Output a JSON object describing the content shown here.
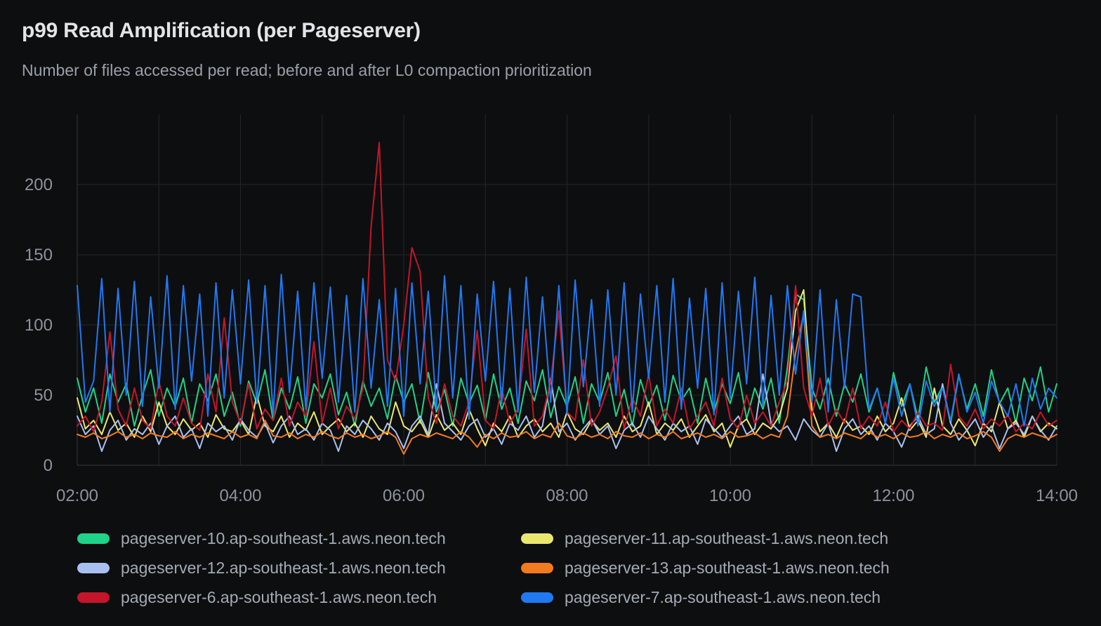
{
  "header": {
    "title": "p99 Read Amplification (per Pageserver)",
    "subtitle": "Number of files accessed per read; before and after L0 compaction prioritization"
  },
  "colors": {
    "background": "#0d0e10",
    "grid": "#232629",
    "axis": "#34383c",
    "tick_label": "#8e939a",
    "title_text": "#e2e4e7",
    "subtitle_text": "#9aa0a7",
    "legend_text": "#a4abb3"
  },
  "chart_data": {
    "type": "line",
    "title": "p99 Read Amplification (per Pageserver)",
    "xlabel": "",
    "ylabel": "",
    "x_range": [
      "02:00",
      "14:00"
    ],
    "x_tick_labels": [
      "02:00",
      "04:00",
      "06:00",
      "08:00",
      "10:00",
      "12:00",
      "14:00"
    ],
    "x_gridline_interval_hours": 1,
    "ylim": [
      0,
      250
    ],
    "y_ticks": [
      0,
      50,
      100,
      150,
      200
    ],
    "grid": true,
    "legend_position": "bottom",
    "sample_interval_minutes": 6,
    "series": [
      {
        "name": "pageserver-10.ap-southeast-1.aws.neon.tech",
        "color": "#1fd389",
        "values": [
          62,
          38,
          55,
          30,
          65,
          45,
          58,
          28,
          50,
          68,
          35,
          55,
          42,
          62,
          30,
          58,
          46,
          65,
          35,
          52,
          28,
          60,
          44,
          68,
          32,
          55,
          40,
          63,
          30,
          58,
          48,
          65,
          36,
          52,
          28,
          60,
          42,
          55,
          33,
          64,
          45,
          58,
          30,
          66,
          38,
          54,
          28,
          62,
          44,
          57,
          32,
          65,
          40,
          55,
          30,
          60,
          46,
          68,
          34,
          56,
          42,
          63,
          30,
          58,
          45,
          66,
          35,
          54,
          28,
          61,
          42,
          57,
          32,
          64,
          46,
          55,
          30,
          62,
          38,
          58,
          44,
          66,
          33,
          55,
          40,
          62,
          30,
          70,
          122,
          118,
          55,
          40,
          62,
          35,
          58,
          45,
          65,
          38,
          55,
          30,
          66,
          42,
          58,
          33,
          70,
          45,
          56,
          30,
          64,
          40,
          58,
          35,
          68,
          44,
          55,
          30,
          62,
          46,
          70,
          38,
          58
        ]
      },
      {
        "name": "pageserver-11.ap-southeast-1.aws.neon.tech",
        "color": "#ebe76e",
        "values": [
          48,
          26,
          32,
          22,
          38,
          25,
          30,
          20,
          35,
          24,
          45,
          28,
          22,
          33,
          25,
          30,
          20,
          36,
          26,
          24,
          32,
          22,
          50,
          28,
          24,
          35,
          20,
          30,
          25,
          38,
          22,
          28,
          33,
          24,
          30,
          20,
          35,
          26,
          22,
          45,
          28,
          24,
          32,
          20,
          36,
          25,
          30,
          22,
          40,
          26,
          14,
          30,
          24,
          35,
          20,
          28,
          33,
          24,
          30,
          20,
          38,
          26,
          22,
          32,
          25,
          30,
          20,
          35,
          24,
          28,
          45,
          22,
          30,
          25,
          33,
          20,
          28,
          36,
          24,
          30,
          13,
          28,
          33,
          22,
          30,
          26,
          35,
          55,
          110,
          125,
          40,
          24,
          30,
          20,
          33,
          25,
          28,
          22,
          35,
          24,
          30,
          48,
          25,
          32,
          20,
          55,
          28,
          22,
          33,
          25,
          14,
          30,
          24,
          45,
          26,
          32,
          20,
          35,
          24,
          30,
          26
        ]
      },
      {
        "name": "pageserver-12.ap-southeast-1.aws.neon.tech",
        "color": "#a8c0f0",
        "values": [
          35,
          22,
          28,
          10,
          25,
          32,
          18,
          26,
          22,
          30,
          15,
          28,
          35,
          20,
          26,
          12,
          30,
          24,
          28,
          18,
          33,
          25,
          20,
          30,
          16,
          28,
          35,
          22,
          26,
          18,
          30,
          25,
          10,
          28,
          22,
          32,
          26,
          18,
          30,
          24,
          12,
          28,
          35,
          22,
          58,
          30,
          24,
          18,
          28,
          33,
          20,
          26,
          15,
          30,
          25,
          35,
          20,
          28,
          62,
          24,
          30,
          18,
          26,
          33,
          22,
          28,
          12,
          25,
          30,
          20,
          35,
          26,
          18,
          30,
          24,
          28,
          15,
          33,
          26,
          20,
          28,
          35,
          22,
          26,
          65,
          30,
          24,
          28,
          18,
          33,
          25,
          20,
          30,
          10,
          26,
          33,
          22,
          28,
          18,
          30,
          24,
          13,
          28,
          35,
          22,
          26,
          58,
          30,
          18,
          25,
          33,
          20,
          28,
          12,
          26,
          30,
          22,
          35,
          25,
          18,
          28
        ]
      },
      {
        "name": "pageserver-13.ap-southeast-1.aws.neon.tech",
        "color": "#f27a1f",
        "values": [
          22,
          20,
          23,
          19,
          21,
          24,
          20,
          22,
          19,
          23,
          21,
          20,
          24,
          19,
          22,
          20,
          23,
          21,
          19,
          24,
          20,
          22,
          19,
          32,
          21,
          20,
          23,
          19,
          22,
          20,
          24,
          21,
          19,
          23,
          20,
          22,
          19,
          21,
          24,
          20,
          8,
          19,
          22,
          20,
          23,
          21,
          19,
          24,
          20,
          13,
          22,
          19,
          23,
          20,
          21,
          24,
          19,
          22,
          20,
          30,
          21,
          19,
          23,
          20,
          22,
          19,
          24,
          21,
          20,
          23,
          19,
          22,
          20,
          24,
          19,
          21,
          23,
          20,
          22,
          19,
          24,
          20,
          21,
          23,
          19,
          22,
          20,
          35,
          80,
          108,
          28,
          20,
          22,
          19,
          23,
          21,
          19,
          24,
          20,
          22,
          19,
          23,
          20,
          21,
          24,
          19,
          22,
          20,
          23,
          19,
          21,
          24,
          20,
          10,
          19,
          22,
          20,
          23,
          21,
          19,
          22
        ]
      },
      {
        "name": "pageserver-6.ap-southeast-1.aws.neon.tech",
        "color": "#c4152a",
        "values": [
          28,
          35,
          24,
          45,
          95,
          40,
          28,
          55,
          32,
          26,
          60,
          35,
          28,
          48,
          30,
          25,
          65,
          38,
          105,
          45,
          30,
          58,
          26,
          40,
          32,
          62,
          28,
          45,
          35,
          88,
          30,
          55,
          26,
          42,
          33,
          55,
          170,
          230,
          75,
          60,
          100,
          155,
          138,
          48,
          30,
          58,
          35,
          28,
          45,
          96,
          32,
          26,
          55,
          30,
          40,
          97,
          28,
          35,
          60,
          110,
          38,
          32,
          75,
          28,
          38,
          55,
          78,
          26,
          48,
          35,
          65,
          28,
          40,
          30,
          55,
          26,
          35,
          45,
          28,
          62,
          33,
          26,
          50,
          30,
          38,
          28,
          45,
          60,
          128,
          55,
          35,
          62,
          28,
          40,
          30,
          55,
          26,
          35,
          28,
          45,
          24,
          32,
          26,
          38,
          28,
          30,
          25,
          72,
          35,
          28,
          40,
          26,
          33,
          28,
          36,
          24,
          30,
          26,
          38,
          28,
          32
        ]
      },
      {
        "name": "pageserver-7.ap-southeast-1.aws.neon.tech",
        "color": "#2079f2",
        "values": [
          128,
          45,
          60,
          133,
          38,
          126,
          50,
          131,
          42,
          120,
          55,
          135,
          40,
          128,
          60,
          122,
          35,
          130,
          48,
          125,
          58,
          132,
          44,
          128,
          36,
          136,
          52,
          124,
          40,
          130,
          62,
          127,
          45,
          121,
          38,
          133,
          55,
          118,
          42,
          126,
          35,
          130,
          58,
          124,
          40,
          135,
          48,
          128,
          33,
          122,
          60,
          131,
          44,
          126,
          38,
          134,
          52,
          120,
          45,
          128,
          36,
          132,
          56,
          118,
          42,
          125,
          50,
          130,
          38,
          122,
          62,
          128,
          45,
          133,
          40,
          119,
          55,
          126,
          36,
          130,
          48,
          124,
          58,
          134,
          42,
          121,
          50,
          128,
          65,
          110,
          45,
          125,
          38,
          118,
          55,
          122,
          120,
          40,
          55,
          30,
          62,
          35,
          58,
          28,
          60,
          42,
          55,
          32,
          65,
          38,
          52,
          30,
          60,
          45,
          35,
          58,
          28,
          62,
          40,
          55,
          48
        ]
      }
    ]
  }
}
